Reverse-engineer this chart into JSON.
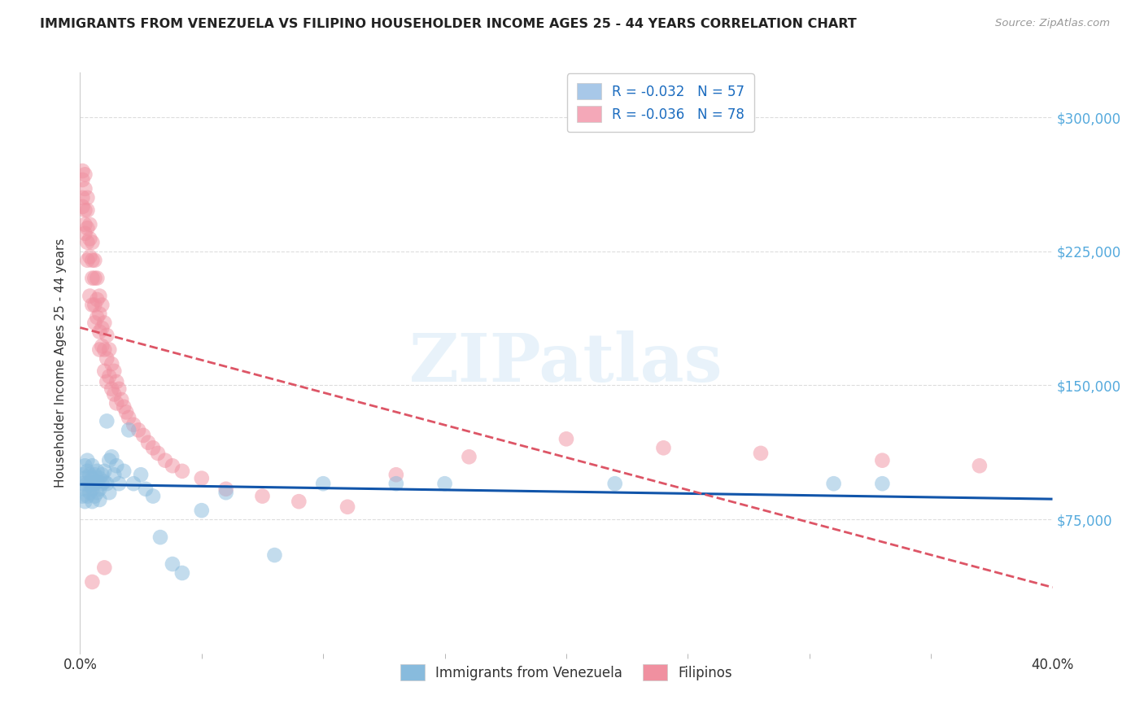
{
  "title": "IMMIGRANTS FROM VENEZUELA VS FILIPINO HOUSEHOLDER INCOME AGES 25 - 44 YEARS CORRELATION CHART",
  "source": "Source: ZipAtlas.com",
  "ylabel": "Householder Income Ages 25 - 44 years",
  "y_ticks": [
    75000,
    150000,
    225000,
    300000
  ],
  "y_tick_labels": [
    "$75,000",
    "$150,000",
    "$225,000",
    "$300,000"
  ],
  "xlim": [
    0.0,
    0.4
  ],
  "ylim": [
    0,
    325000
  ],
  "watermark": "ZIPatlas",
  "legend_items": [
    {
      "label": "R = -0.032   N = 57",
      "facecolor": "#a8c8e8"
    },
    {
      "label": "R = -0.036   N = 78",
      "facecolor": "#f4a8b8"
    }
  ],
  "legend_text_color": "#1a6bbf",
  "series1_name": "Immigrants from Venezuela",
  "series2_name": "Filipinos",
  "series1_color": "#88bbdd",
  "series2_color": "#f090a0",
  "series1_line_color": "#1155aa",
  "series2_line_color": "#dd5566",
  "background_color": "#ffffff",
  "venezuela_x": [
    0.001,
    0.001,
    0.001,
    0.002,
    0.002,
    0.002,
    0.002,
    0.003,
    0.003,
    0.003,
    0.003,
    0.004,
    0.004,
    0.004,
    0.005,
    0.005,
    0.005,
    0.005,
    0.006,
    0.006,
    0.006,
    0.007,
    0.007,
    0.007,
    0.008,
    0.008,
    0.008,
    0.009,
    0.009,
    0.01,
    0.01,
    0.011,
    0.011,
    0.012,
    0.012,
    0.013,
    0.014,
    0.015,
    0.016,
    0.018,
    0.02,
    0.022,
    0.025,
    0.027,
    0.03,
    0.033,
    0.038,
    0.042,
    0.05,
    0.06,
    0.08,
    0.1,
    0.13,
    0.15,
    0.22,
    0.31,
    0.33
  ],
  "venezuela_y": [
    100000,
    95000,
    88000,
    105000,
    92000,
    98000,
    85000,
    102000,
    95000,
    108000,
    88000,
    100000,
    95000,
    90000,
    105000,
    98000,
    92000,
    85000,
    100000,
    95000,
    88000,
    102000,
    96000,
    90000,
    98000,
    92000,
    86000,
    100000,
    95000,
    102000,
    96000,
    130000,
    95000,
    108000,
    90000,
    110000,
    100000,
    105000,
    95000,
    102000,
    125000,
    95000,
    100000,
    92000,
    88000,
    65000,
    50000,
    45000,
    80000,
    90000,
    55000,
    95000,
    95000,
    95000,
    95000,
    95000,
    95000
  ],
  "filipinos_x": [
    0.001,
    0.001,
    0.001,
    0.001,
    0.002,
    0.002,
    0.002,
    0.002,
    0.002,
    0.003,
    0.003,
    0.003,
    0.003,
    0.003,
    0.004,
    0.004,
    0.004,
    0.004,
    0.005,
    0.005,
    0.005,
    0.005,
    0.006,
    0.006,
    0.006,
    0.006,
    0.007,
    0.007,
    0.007,
    0.008,
    0.008,
    0.008,
    0.008,
    0.009,
    0.009,
    0.009,
    0.01,
    0.01,
    0.01,
    0.011,
    0.011,
    0.011,
    0.012,
    0.012,
    0.013,
    0.013,
    0.014,
    0.014,
    0.015,
    0.015,
    0.016,
    0.017,
    0.018,
    0.019,
    0.02,
    0.022,
    0.024,
    0.026,
    0.028,
    0.03,
    0.032,
    0.035,
    0.038,
    0.042,
    0.05,
    0.06,
    0.075,
    0.09,
    0.11,
    0.13,
    0.16,
    0.2,
    0.24,
    0.28,
    0.33,
    0.37,
    0.005,
    0.01
  ],
  "filipinos_y": [
    270000,
    265000,
    255000,
    250000,
    268000,
    260000,
    248000,
    240000,
    235000,
    255000,
    248000,
    238000,
    230000,
    220000,
    240000,
    232000,
    222000,
    200000,
    230000,
    220000,
    210000,
    195000,
    220000,
    210000,
    195000,
    185000,
    210000,
    198000,
    188000,
    200000,
    190000,
    180000,
    170000,
    195000,
    182000,
    172000,
    185000,
    170000,
    158000,
    178000,
    165000,
    152000,
    170000,
    155000,
    162000,
    148000,
    158000,
    145000,
    152000,
    140000,
    148000,
    142000,
    138000,
    135000,
    132000,
    128000,
    125000,
    122000,
    118000,
    115000,
    112000,
    108000,
    105000,
    102000,
    98000,
    92000,
    88000,
    85000,
    82000,
    100000,
    110000,
    120000,
    115000,
    112000,
    108000,
    105000,
    40000,
    48000
  ]
}
